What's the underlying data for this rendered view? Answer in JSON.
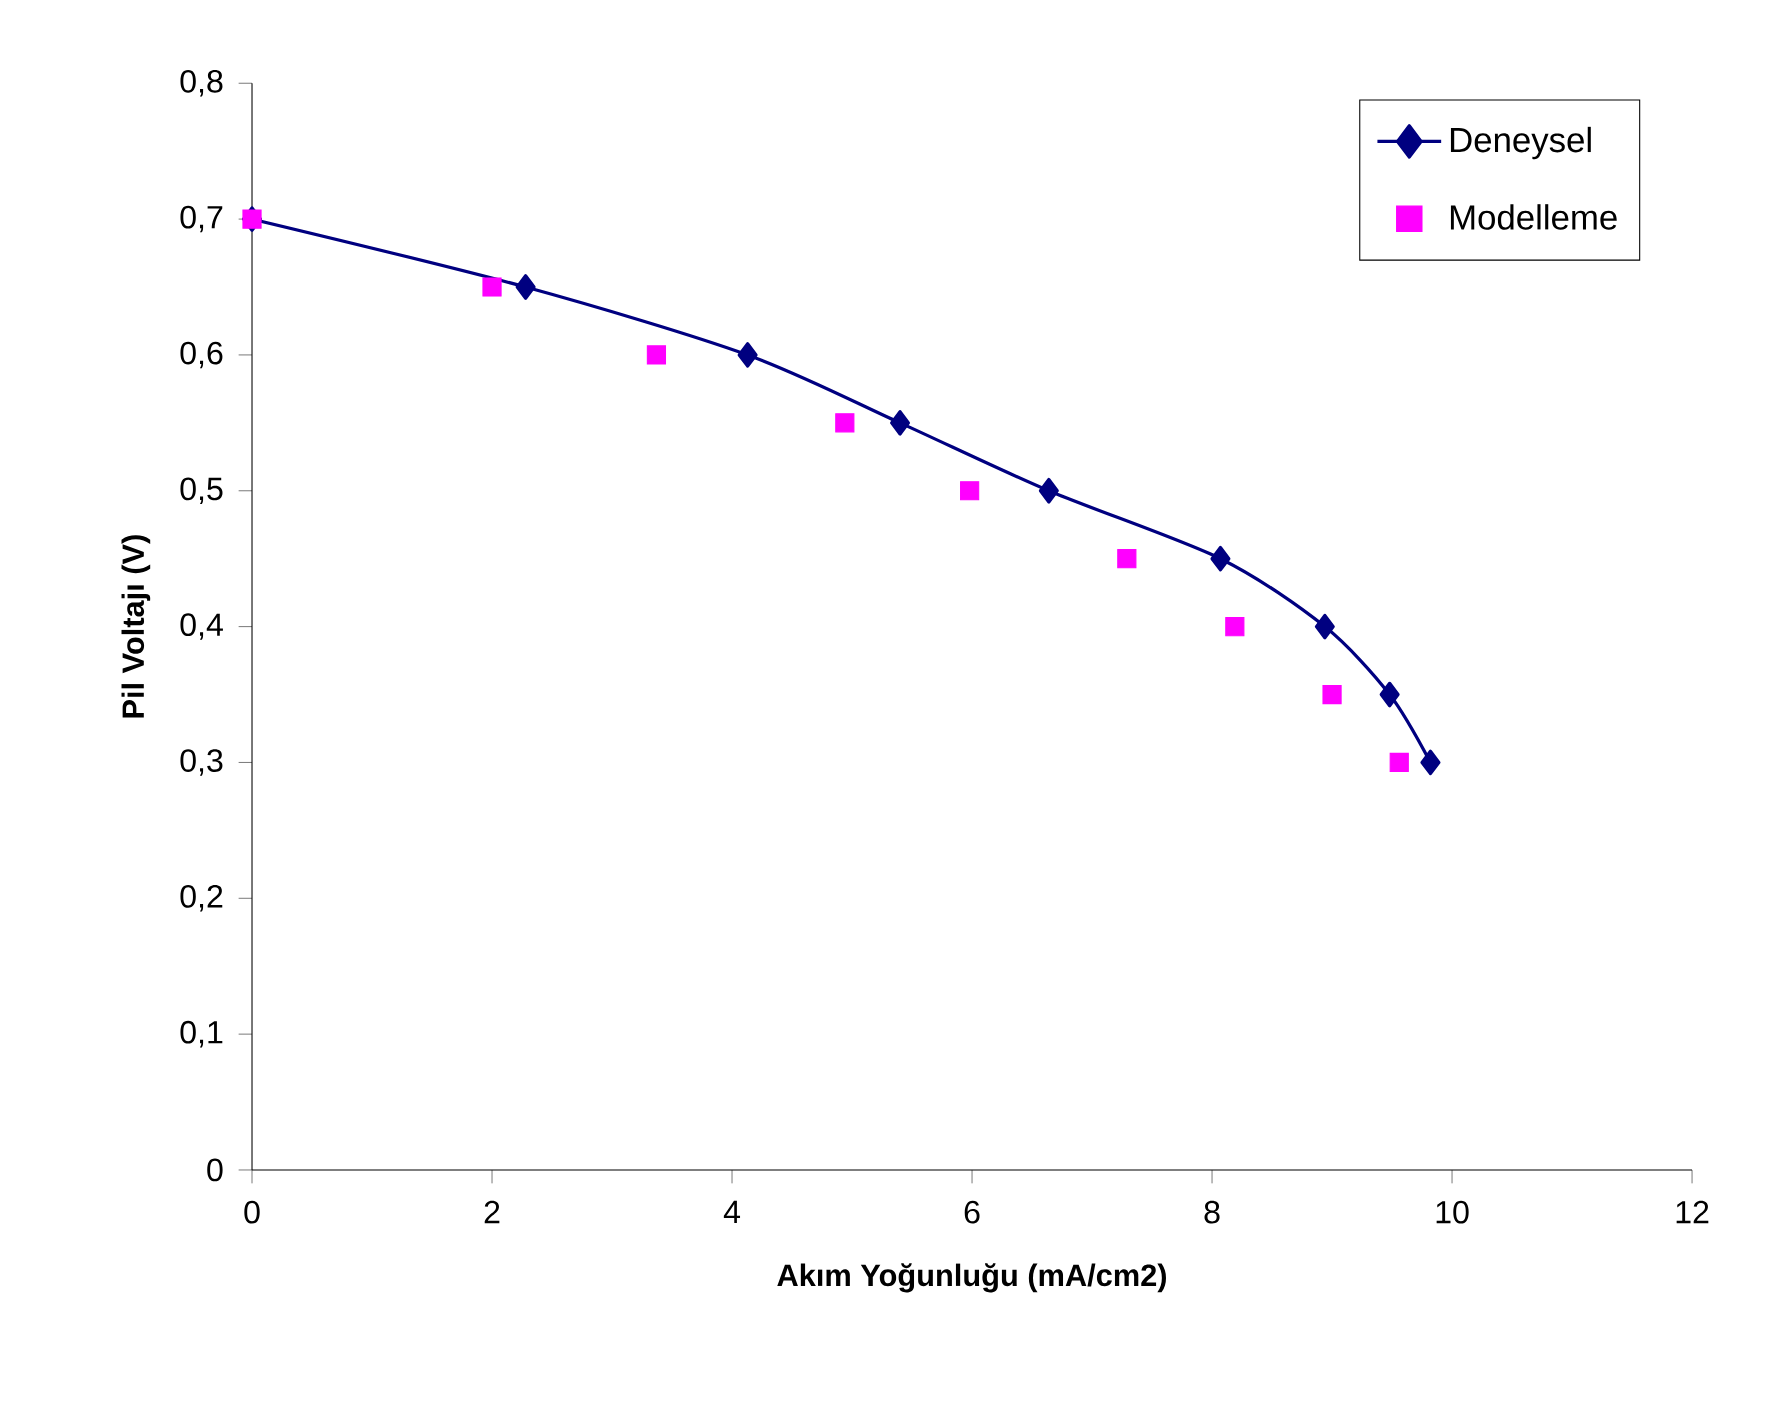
{
  "chart_data": {
    "type": "line",
    "xlabel": "Akım Yoğunluğu (mA/cm2)",
    "ylabel": "Pil Voltajı (V)",
    "series": [
      {
        "name": "Deneysel",
        "color": "#000080",
        "marker": "diamond",
        "line_style": "solid",
        "x": [
          0,
          2.28,
          4.13,
          5.4,
          6.64,
          8.07,
          8.94,
          9.48,
          9.82
        ],
        "values": [
          0.7,
          0.65,
          0.6,
          0.55,
          0.5,
          0.45,
          0.4,
          0.35,
          0.3
        ]
      },
      {
        "name": "Modelleme",
        "type": "scatter",
        "color": "#ff00ff",
        "marker": "square",
        "x": [
          0,
          2.0,
          3.37,
          4.94,
          5.98,
          7.29,
          8.19,
          9.0,
          9.56
        ],
        "values": [
          0.7,
          0.65,
          0.6,
          0.55,
          0.5,
          0.45,
          0.4,
          0.35,
          0.3
        ]
      }
    ],
    "xlim": [
      0,
      12
    ],
    "xticks": [
      0,
      2,
      4,
      6,
      8,
      10,
      12
    ],
    "ylim": [
      0,
      0.8
    ],
    "yticks": [
      0,
      {
        "value": 0.1,
        "label": "0,1"
      },
      {
        "value": 0.2,
        "label": "0,2"
      },
      {
        "value": 0.3,
        "label": "0,3"
      },
      {
        "value": 0.4,
        "label": "0,4"
      },
      {
        "value": 0.5,
        "label": "0,5"
      },
      {
        "value": 0.6,
        "label": "0,6"
      },
      {
        "value": 0.7,
        "label": "0,7"
      },
      {
        "value": 0.8,
        "label": "0,8"
      }
    ],
    "grid": false,
    "legend": "top right"
  }
}
